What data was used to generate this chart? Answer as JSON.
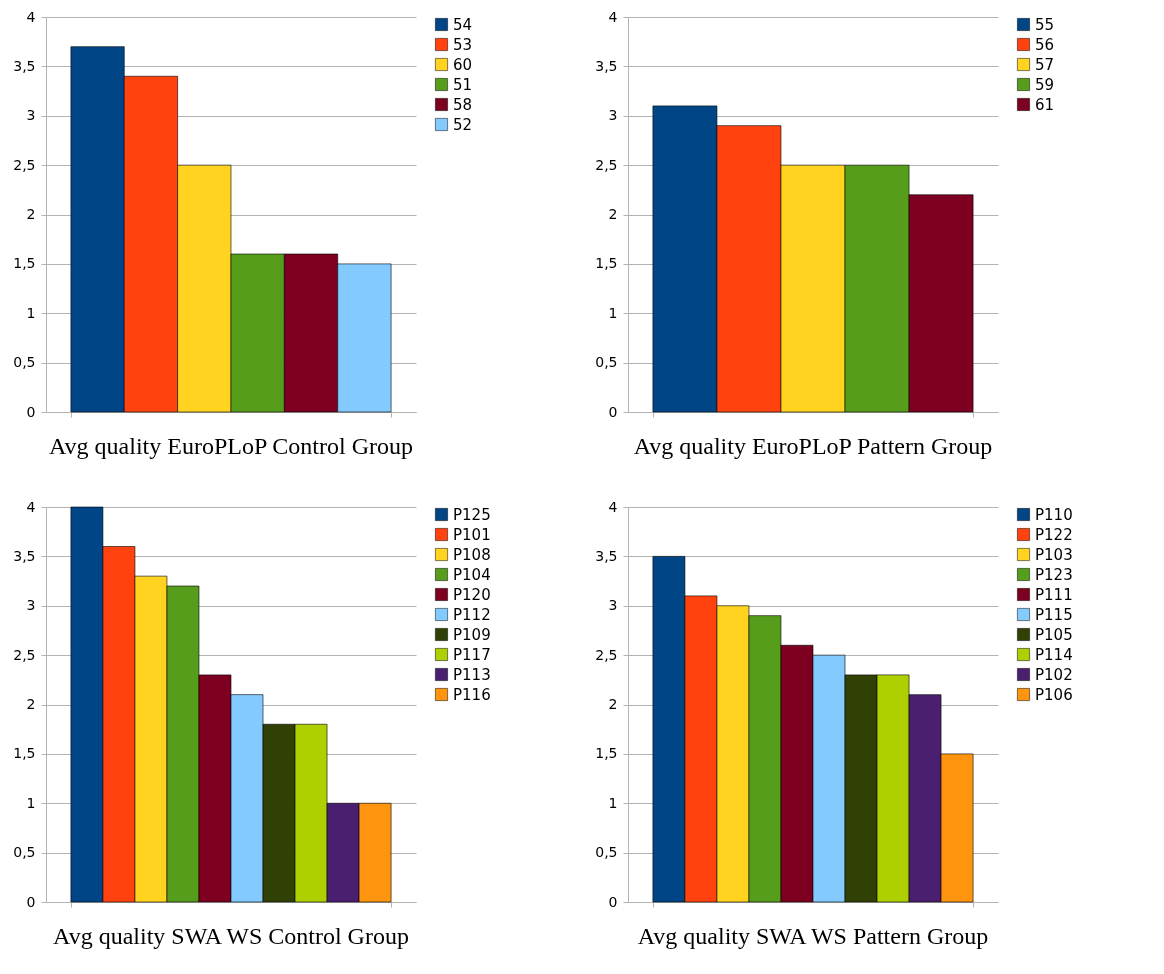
{
  "chart_data": [
    {
      "type": "bar",
      "title": "Avg quality EuroPLoP Control Group",
      "categories": [
        null
      ],
      "series": [
        {
          "name": "54",
          "color": "#004586",
          "values": [
            3.7
          ]
        },
        {
          "name": "53",
          "color": "#ff420e",
          "values": [
            3.4
          ]
        },
        {
          "name": "60",
          "color": "#ffd320",
          "values": [
            2.5
          ]
        },
        {
          "name": "51",
          "color": "#579d1c",
          "values": [
            1.6
          ]
        },
        {
          "name": "58",
          "color": "#7e0021",
          "values": [
            1.6
          ]
        },
        {
          "name": "52",
          "color": "#83caff",
          "values": [
            1.5
          ]
        }
      ],
      "ylim": [
        0,
        4
      ],
      "yticks": [
        0,
        {
          "value": 0.5,
          "label": "0,5"
        },
        1,
        {
          "value": 1.5,
          "label": "1,5"
        },
        2,
        {
          "value": 2.5,
          "label": "2,5"
        },
        3,
        {
          "value": 3.5,
          "label": "3,5"
        },
        4
      ],
      "grid": "y",
      "legend": "right",
      "tick_labels": "y"
    },
    {
      "type": "bar",
      "title": "Avg quality EuroPLoP Pattern Group",
      "categories": [
        null
      ],
      "series": [
        {
          "name": "55",
          "color": "#004586",
          "values": [
            3.1
          ]
        },
        {
          "name": "56",
          "color": "#ff420e",
          "values": [
            2.9
          ]
        },
        {
          "name": "57",
          "color": "#ffd320",
          "values": [
            2.5
          ]
        },
        {
          "name": "59",
          "color": "#579d1c",
          "values": [
            2.5
          ]
        },
        {
          "name": "61",
          "color": "#7e0021",
          "values": [
            2.2
          ]
        }
      ],
      "ylim": [
        0,
        4
      ],
      "yticks": [
        0,
        {
          "value": 0.5,
          "label": "0,5"
        },
        1,
        {
          "value": 1.5,
          "label": "1,5"
        },
        2,
        {
          "value": 2.5,
          "label": "2,5"
        },
        3,
        {
          "value": 3.5,
          "label": "3,5"
        },
        4
      ],
      "grid": "y",
      "legend": "right",
      "tick_labels": "y"
    },
    {
      "type": "bar",
      "title": "Avg quality SWA WS Control Group",
      "categories": [
        null
      ],
      "series": [
        {
          "name": "P125",
          "color": "#004586",
          "values": [
            4
          ]
        },
        {
          "name": "P101",
          "color": "#ff420e",
          "values": [
            3.6
          ]
        },
        {
          "name": "P108",
          "color": "#ffd320",
          "values": [
            3.3
          ]
        },
        {
          "name": "P104",
          "color": "#579d1c",
          "values": [
            3.2
          ]
        },
        {
          "name": "P120",
          "color": "#7e0021",
          "values": [
            2.3
          ]
        },
        {
          "name": "P112",
          "color": "#83caff",
          "values": [
            2.1
          ]
        },
        {
          "name": "P109",
          "color": "#314004",
          "values": [
            1.8
          ]
        },
        {
          "name": "P117",
          "color": "#aecf00",
          "values": [
            1.8
          ]
        },
        {
          "name": "P113",
          "color": "#4b1f6f",
          "values": [
            1
          ]
        },
        {
          "name": "P116",
          "color": "#ff950e",
          "values": [
            1
          ]
        }
      ],
      "ylim": [
        0,
        4
      ],
      "yticks": [
        0,
        {
          "value": 0.5,
          "label": "0,5"
        },
        1,
        {
          "value": 1.5,
          "label": "1,5"
        },
        2,
        {
          "value": 2.5,
          "label": "2,5"
        },
        3,
        {
          "value": 3.5,
          "label": "3,5"
        },
        4
      ],
      "grid": "y",
      "legend": "right",
      "tick_labels": "y"
    },
    {
      "type": "bar",
      "title": "Avg quality SWA WS Pattern Group",
      "categories": [
        null
      ],
      "series": [
        {
          "name": "P110",
          "color": "#004586",
          "values": [
            3.5
          ]
        },
        {
          "name": "P122",
          "color": "#ff420e",
          "values": [
            3.1
          ]
        },
        {
          "name": "P103",
          "color": "#ffd320",
          "values": [
            3
          ]
        },
        {
          "name": "P123",
          "color": "#579d1c",
          "values": [
            2.9
          ]
        },
        {
          "name": "P111",
          "color": "#7e0021",
          "values": [
            2.6
          ]
        },
        {
          "name": "P115",
          "color": "#83caff",
          "values": [
            2.5
          ]
        },
        {
          "name": "P105",
          "color": "#314004",
          "values": [
            2.3
          ]
        },
        {
          "name": "P114",
          "color": "#aecf00",
          "values": [
            2.3
          ]
        },
        {
          "name": "P102",
          "color": "#4b1f6f",
          "values": [
            2.1
          ]
        },
        {
          "name": "P106",
          "color": "#ff950e",
          "values": [
            1.5
          ]
        }
      ],
      "ylim": [
        0,
        4
      ],
      "yticks": [
        0,
        {
          "value": 0.5,
          "label": "0,5"
        },
        1,
        {
          "value": 1.5,
          "label": "1,5"
        },
        2,
        {
          "value": 2.5,
          "label": "2,5"
        },
        3,
        {
          "value": 3.5,
          "label": "3,5"
        },
        4
      ],
      "grid": "y",
      "legend": "right",
      "tick_labels": "y"
    }
  ]
}
